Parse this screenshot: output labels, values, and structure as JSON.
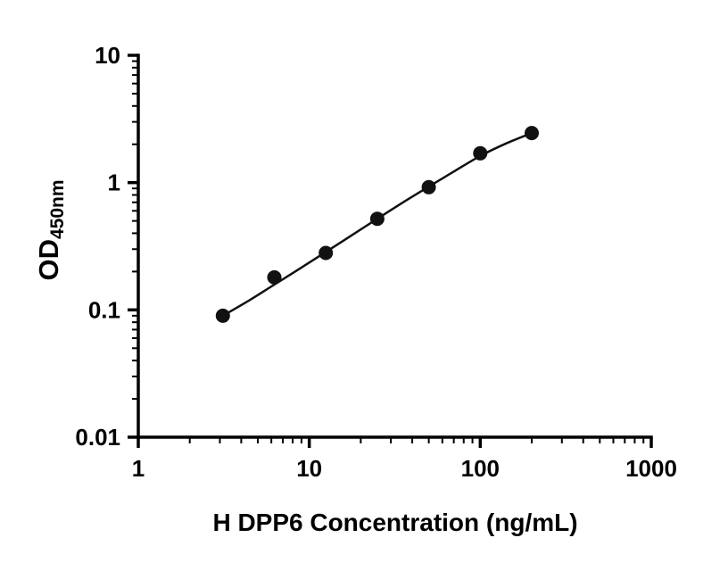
{
  "chart_data": {
    "type": "scatter",
    "title": "",
    "xlabel": "H DPP6 Concentration (ng/mL)",
    "ylabel_main": "OD",
    "ylabel_sub": "450nm",
    "x_scale": "log",
    "y_scale": "log",
    "xlim": [
      1,
      1000
    ],
    "ylim": [
      0.01,
      10
    ],
    "grid": false,
    "legend": "none",
    "x_ticks": [
      1,
      10,
      100,
      1000
    ],
    "x_tick_labels": [
      "1",
      "10",
      "100",
      "1000"
    ],
    "y_ticks": [
      0.01,
      0.1,
      1,
      10
    ],
    "y_tick_labels": [
      "0.01",
      "0.1",
      "1",
      "10"
    ],
    "points": [
      {
        "x": 3.125,
        "y": 0.09
      },
      {
        "x": 6.25,
        "y": 0.18
      },
      {
        "x": 12.5,
        "y": 0.28
      },
      {
        "x": 25,
        "y": 0.52
      },
      {
        "x": 50,
        "y": 0.92
      },
      {
        "x": 100,
        "y": 1.7
      },
      {
        "x": 200,
        "y": 2.45
      }
    ],
    "fit_curve": [
      {
        "x": 3.125,
        "y": 0.09
      },
      {
        "x": 4.42,
        "y": 0.118
      },
      {
        "x": 6.25,
        "y": 0.158
      },
      {
        "x": 8.84,
        "y": 0.212
      },
      {
        "x": 12.5,
        "y": 0.285
      },
      {
        "x": 17.68,
        "y": 0.385
      },
      {
        "x": 25,
        "y": 0.52
      },
      {
        "x": 35.36,
        "y": 0.7
      },
      {
        "x": 50,
        "y": 0.93
      },
      {
        "x": 70.7,
        "y": 1.23
      },
      {
        "x": 100,
        "y": 1.62
      },
      {
        "x": 141.4,
        "y": 2.03
      },
      {
        "x": 200,
        "y": 2.45
      }
    ],
    "colors": {
      "point": "#111111",
      "curve": "#111111",
      "axis": "#000000",
      "background": "#ffffff"
    }
  }
}
